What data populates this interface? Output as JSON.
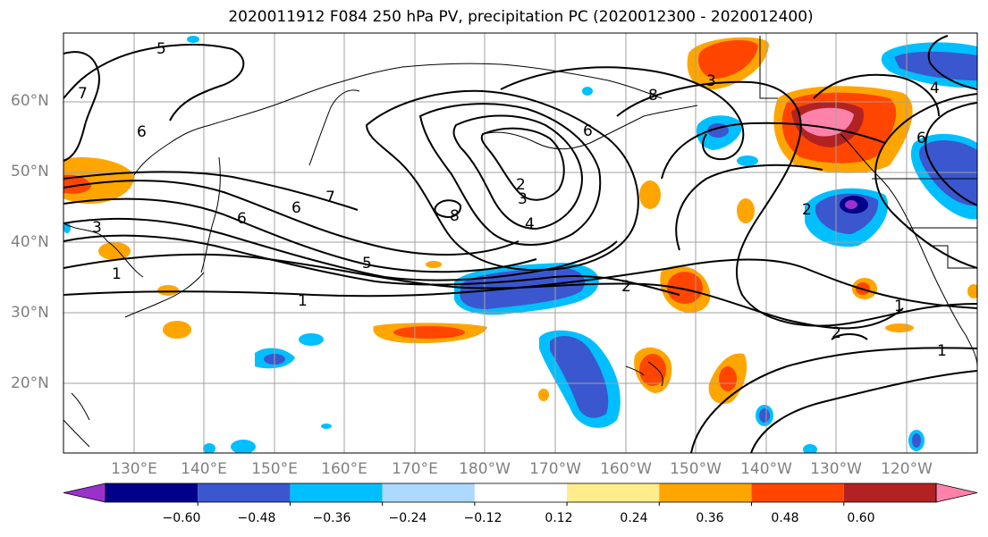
{
  "title": "2020011912 F084 250 hPa PV, precipitation PC (2020012300 - 2020012400)",
  "lat_labels": [
    "60°N",
    "50°N",
    "40°N",
    "30°N",
    "20°N"
  ],
  "lon_labels": [
    "130°E",
    "140°E",
    "150°E",
    "160°E",
    "170°E",
    "180°W",
    "170°W",
    "160°W",
    "150°W",
    "140°W",
    "130°W",
    "120°W"
  ],
  "contour_labels": [
    "5",
    "7",
    "6",
    "3",
    "1",
    "6",
    "7",
    "6",
    "5",
    "1",
    "2",
    "3",
    "4",
    "8",
    "6",
    "8",
    "2",
    "3",
    "2",
    "1",
    "2",
    "1",
    "6",
    "4"
  ],
  "colorbar": {
    "tick_labels": [
      "−0.60",
      "−0.48",
      "−0.36",
      "−0.24",
      "−0.12",
      "0.12",
      "0.24",
      "0.36",
      "0.48",
      "0.60"
    ],
    "colors": [
      "#9932cc",
      "#00008b",
      "#3a57cf",
      "#00bfff",
      "#add8ff",
      "#ffffff",
      "#ffec8b",
      "#ffa500",
      "#ff4500",
      "#b22222",
      "#ff82ab"
    ]
  }
}
